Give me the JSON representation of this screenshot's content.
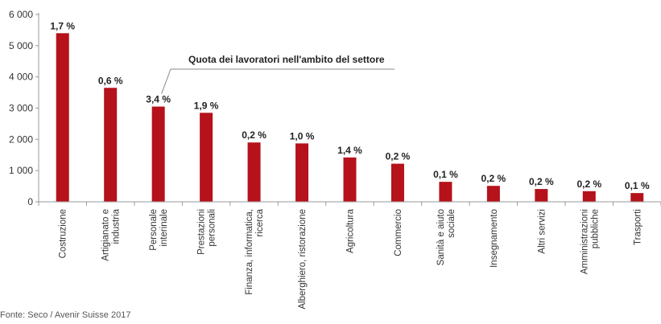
{
  "chart_data": {
    "type": "bar",
    "categories": [
      "Costruzione",
      "Artigianato e industria",
      "Personale interinale",
      "Prestazioni personali",
      "Finanza, informatica, ricerca",
      "Alberghiero, ristorazione",
      "Agricoltura",
      "Commercio",
      "Sanità e aiuto sociale",
      "Insegnamento",
      "Altri servizi",
      "Amministrazioni pubbliche",
      "Trasporti"
    ],
    "category_lines": [
      [
        "Costruzione"
      ],
      [
        "Artigianato e",
        "industria"
      ],
      [
        "Personale",
        "interinale"
      ],
      [
        "Prestazioni",
        "personali"
      ],
      [
        "Finanza, informatica,",
        "ricerca"
      ],
      [
        "Alberghiero, ristorazione"
      ],
      [
        "Agricoltura"
      ],
      [
        "Commercio"
      ],
      [
        "Sanità e aiuto",
        "sociale"
      ],
      [
        "Insegnamento"
      ],
      [
        "Altri servizi"
      ],
      [
        "Amministrazioni",
        "pubbliche"
      ],
      [
        "Trasporti"
      ]
    ],
    "values": [
      5400,
      3650,
      3050,
      2850,
      1900,
      1870,
      1420,
      1220,
      640,
      510,
      410,
      340,
      280
    ],
    "data_labels": [
      "1,7 %",
      "0,6 %",
      "3,4 %",
      "1,9 %",
      "0,2 %",
      "1,0 %",
      "1,4 %",
      "0,2 %",
      "0,1 %",
      "0,2 %",
      "0,2 %",
      "0,2 %",
      "0,1 %"
    ],
    "yticks": [
      0,
      1000,
      2000,
      3000,
      4000,
      5000,
      6000
    ],
    "ytick_labels": [
      "0",
      "1 000",
      "2 000",
      "3 000",
      "4 000",
      "5 000",
      "6 000"
    ],
    "ylim": [
      0,
      6000
    ],
    "bar_color": "#b5121b",
    "grid": false,
    "annotation": {
      "text": "Quota dei lavoratori nell'ambito del settore",
      "target_category": "Personale interinale"
    },
    "source": "Fonte: Seco / Avenir Suisse 2017"
  }
}
